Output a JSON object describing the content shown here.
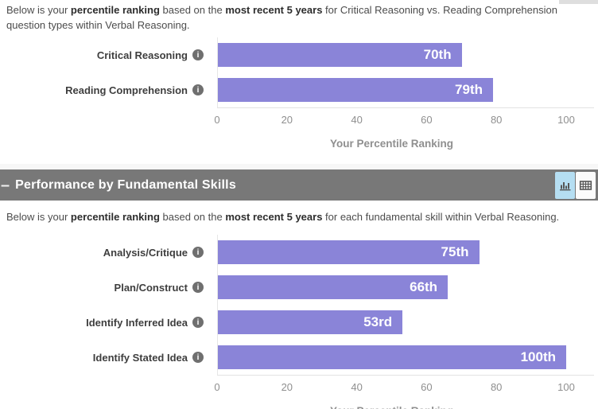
{
  "section1": {
    "description": {
      "s1": "Below is your ",
      "b1": "percentile ranking",
      "s2": " based on the ",
      "b2": "most recent 5 years",
      "s3": " for Critical Reasoning vs. Reading Comprehension question types within Verbal Reasoning."
    }
  },
  "section2": {
    "title": "Performance by Fundamental Skills",
    "collapse_glyph": "–",
    "view_toggle": {
      "chart_view_icon": "bar-chart-icon",
      "table_view_icon": "table-icon",
      "active_view": "chart"
    },
    "description": {
      "s1": "Below is your ",
      "b1": "percentile ranking",
      "s2": " based on the ",
      "b2": "most recent 5 years",
      "s3": " for each fundamental skill within Verbal Reasoning."
    }
  },
  "icons": {
    "info_glyph": "i"
  },
  "colors": {
    "bar": "#8a84d8",
    "header_bg": "#787878",
    "active_toggle_bg": "#b5def2",
    "axis_text": "#8f8f8f"
  },
  "chart_data": [
    {
      "type": "bar",
      "orientation": "horizontal",
      "categories": [
        "Critical Reasoning",
        "Reading Comprehension"
      ],
      "values": [
        70,
        79
      ],
      "value_labels": [
        "70th",
        "79th"
      ],
      "xlabel": "Your Percentile Ranking",
      "xlim": [
        0,
        100
      ],
      "xticks": [
        0,
        20,
        40,
        60,
        80,
        100
      ],
      "grid": false,
      "legend": "none"
    },
    {
      "type": "bar",
      "orientation": "horizontal",
      "categories": [
        "Analysis/Critique",
        "Plan/Construct",
        "Identify Inferred Idea",
        "Identify Stated Idea"
      ],
      "values": [
        75,
        66,
        53,
        100
      ],
      "value_labels": [
        "75th",
        "66th",
        "53rd",
        "100th"
      ],
      "xlabel": "Your Percentile Ranking",
      "xlim": [
        0,
        100
      ],
      "xticks": [
        0,
        20,
        40,
        60,
        80,
        100
      ],
      "grid": false,
      "legend": "none"
    }
  ]
}
